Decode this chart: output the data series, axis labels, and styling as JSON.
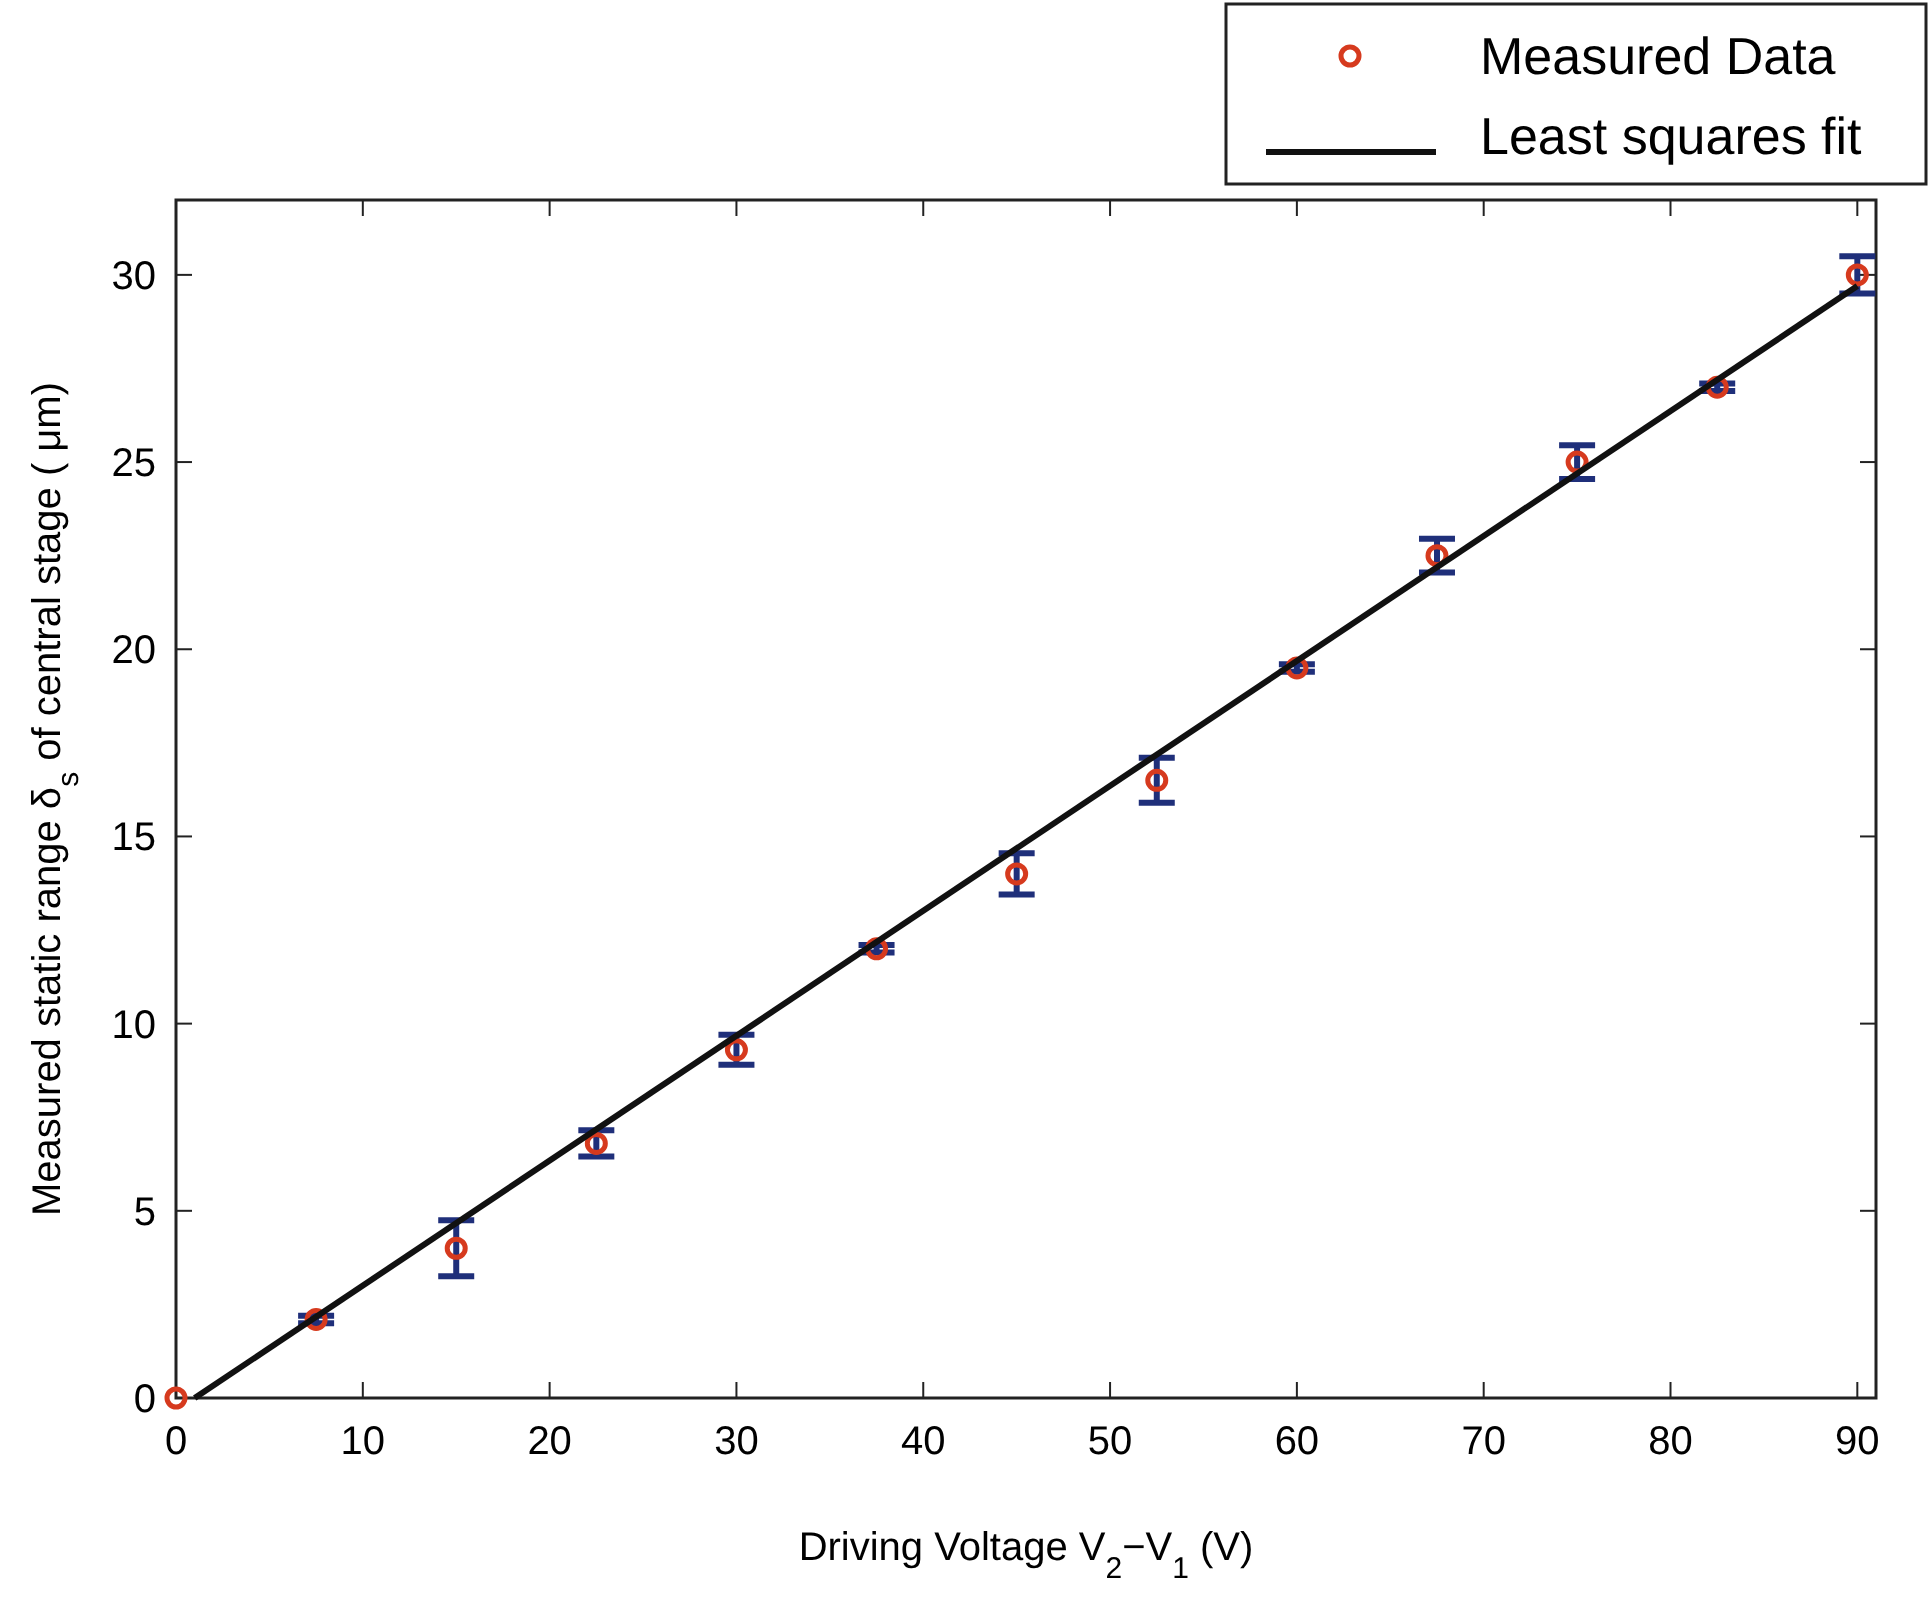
{
  "chart_data": {
    "type": "scatter",
    "xlabel": "Driving Voltage V$_{2}$−V$_{1}$ (V)",
    "ylabel": "Measured static range   δ$_{s}$ of central stage (  μm)",
    "xlim": [
      0,
      91
    ],
    "ylim": [
      0,
      32
    ],
    "xticks": [
      0,
      10,
      20,
      30,
      40,
      50,
      60,
      70,
      80,
      90
    ],
    "yticks": [
      0,
      5,
      10,
      15,
      20,
      25,
      30
    ],
    "legend": "top right",
    "series": [
      {
        "name": "Measured Data",
        "marker": "circle",
        "color": "#d63a1e",
        "x": [
          0,
          7.5,
          15,
          22.5,
          30,
          37.5,
          45,
          52.5,
          60,
          67.5,
          75,
          82.5,
          90
        ],
        "values": [
          0,
          2.1,
          4.0,
          6.8,
          9.3,
          12.0,
          14.0,
          16.5,
          19.5,
          22.5,
          25.0,
          27.0,
          30.0
        ],
        "errors": [
          null,
          0.1,
          0.75,
          0.35,
          0.4,
          0.1,
          0.55,
          0.6,
          0.1,
          0.45,
          0.45,
          0.1,
          0.5
        ]
      },
      {
        "name": "Least squares fit",
        "type": "line",
        "marker": "none",
        "color": "#111111",
        "x": [
          1,
          90
        ],
        "values": [
          0,
          29.7
        ]
      }
    ]
  }
}
